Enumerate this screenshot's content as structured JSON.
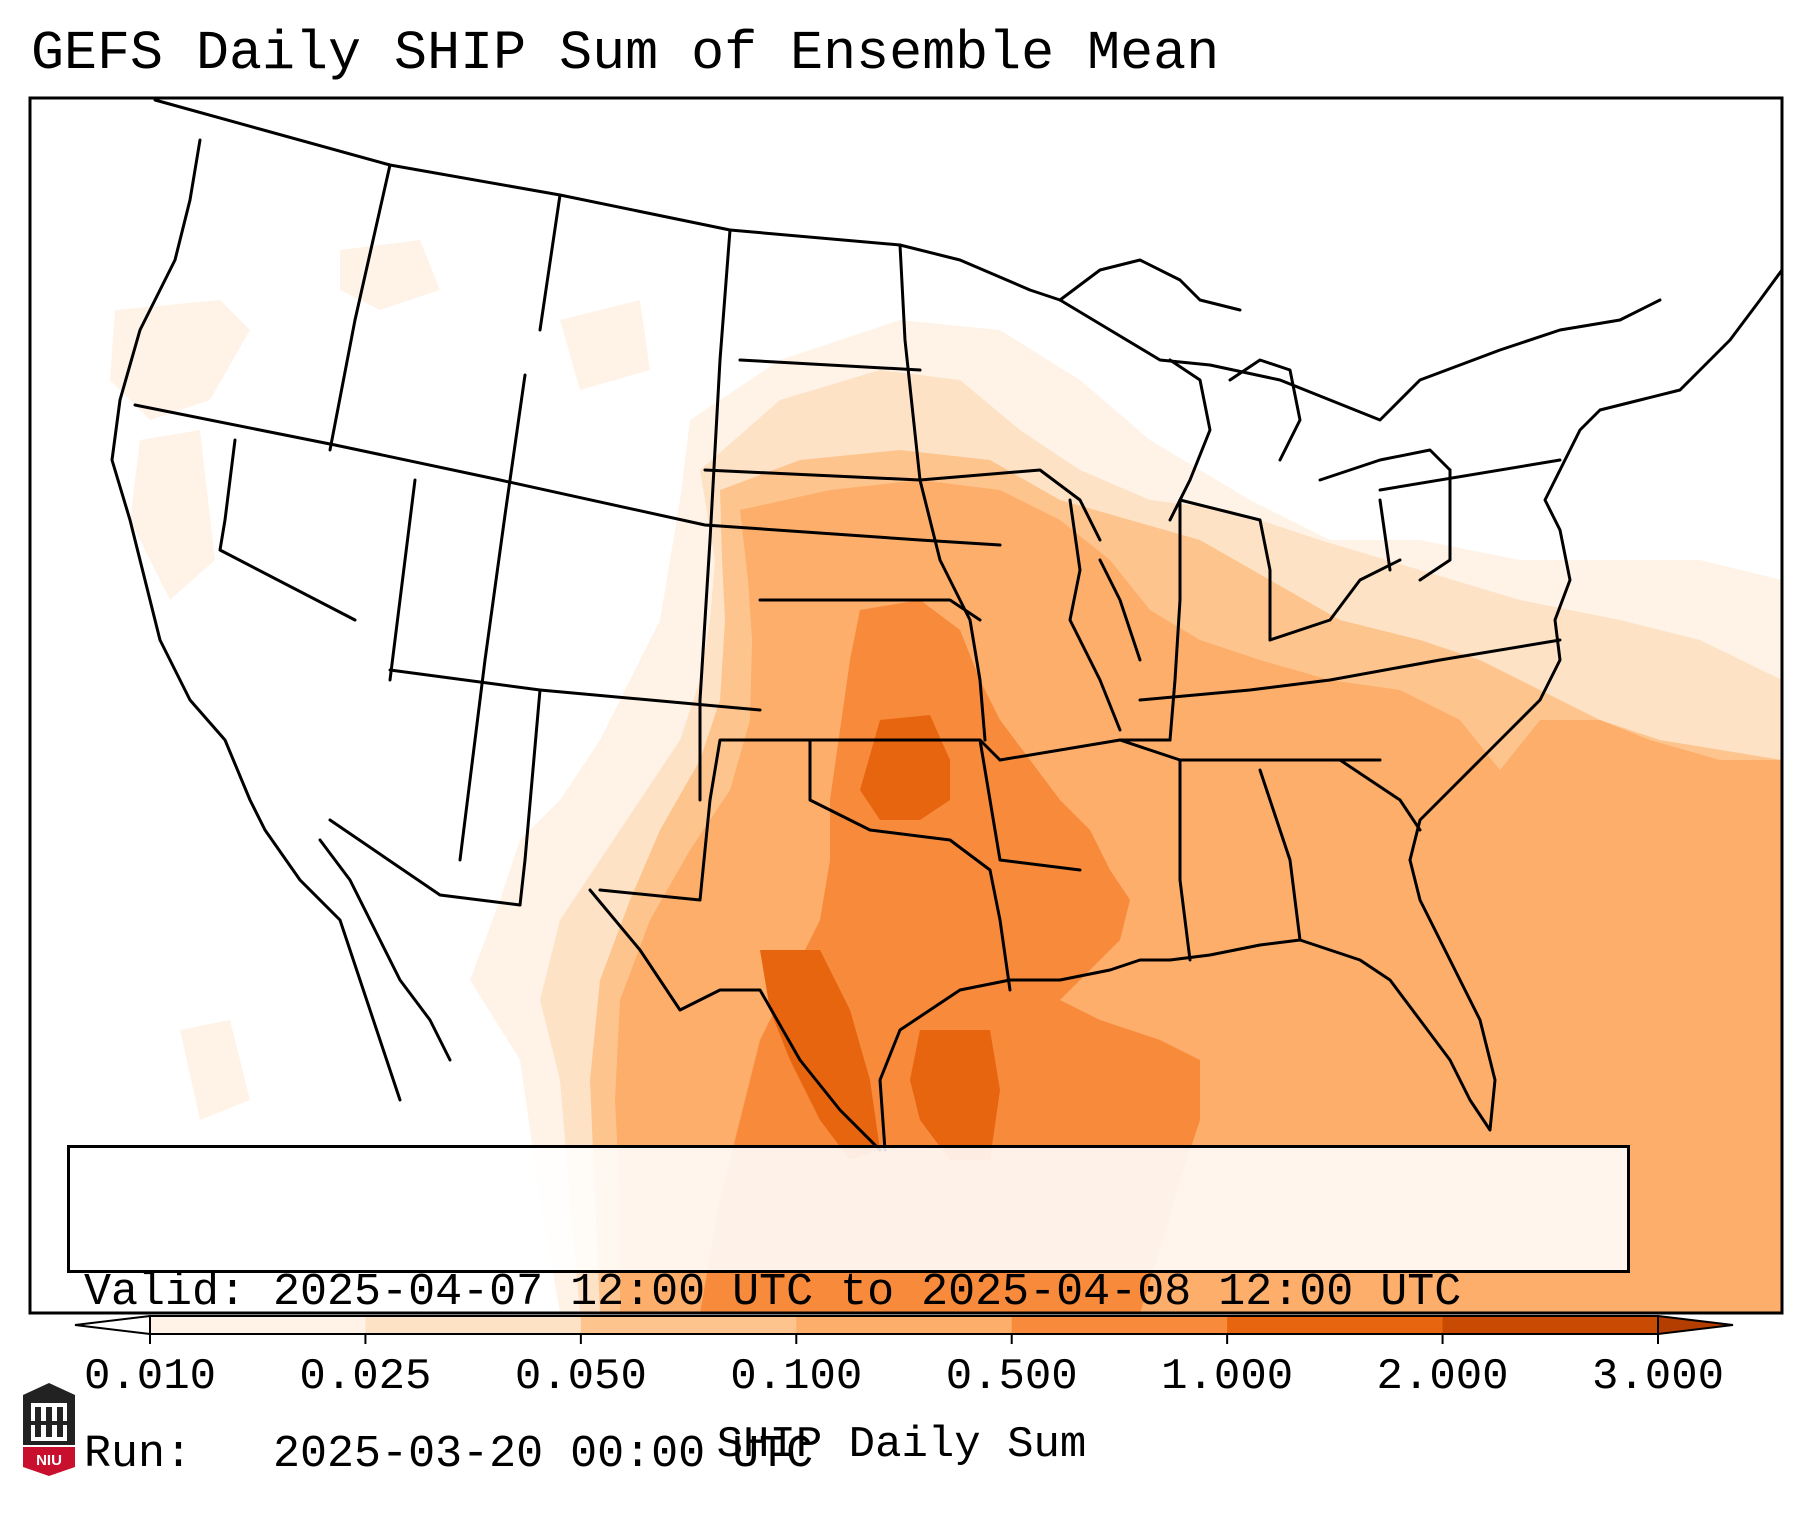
{
  "title": "GEFS Daily SHIP Sum of Ensemble Mean",
  "info": {
    "valid_label": "Valid:",
    "valid_value": "2025-04-07 12:00 UTC to 2025-04-08 12:00 UTC",
    "run_label": "Run:",
    "run_value": "2025-03-20 00:00 UTC"
  },
  "colorbar": {
    "label": "SHIP Daily Sum",
    "ticks": [
      "0.010",
      "0.025",
      "0.050",
      "0.100",
      "0.500",
      "1.000",
      "2.000",
      "3.000"
    ],
    "colors": [
      "#fff3e8",
      "#fee2c6",
      "#fdc58d",
      "#fdae6b",
      "#f78a3b",
      "#e8650f",
      "#c94a02"
    ],
    "extend": "both"
  },
  "logo": {
    "text": "NIU",
    "colors": {
      "red": "#c8102e",
      "dark": "#222222"
    }
  },
  "map": {
    "region": "Contiguous United States and surroundings",
    "field_colors": {
      "trace": "#fff3e8",
      "light": "#fee2c6",
      "low": "#fdc58d",
      "moderate": "#fdae6b",
      "high": "#f78a3b",
      "very_high": "#e8650f"
    }
  }
}
